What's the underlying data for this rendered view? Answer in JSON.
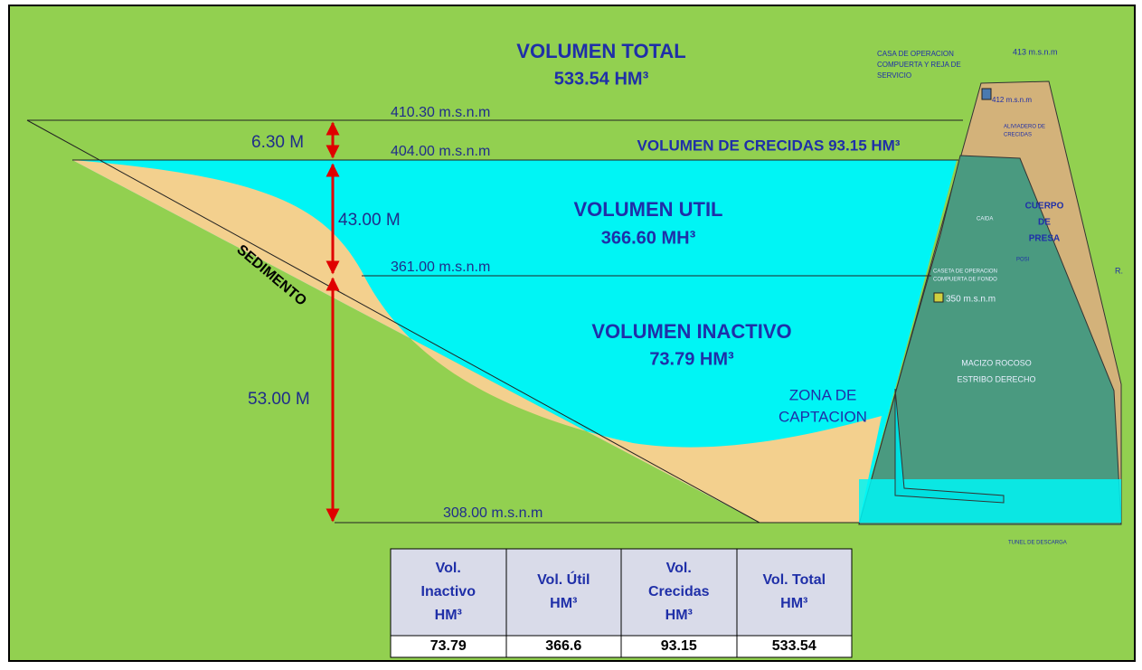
{
  "title": "VOLUMEN TOTAL",
  "total_volume": "533.54 HM³",
  "levels": [
    "410.30 m.s.n.m",
    "404.00 m.s.n.m",
    "361.00 m.s.n.m",
    "308.00 m.s.n.m"
  ],
  "heights": [
    "6.30 M",
    "43.00 M",
    "53.00 M"
  ],
  "flood_volume": "VOLUMEN DE CRECIDAS 93.15 HM³",
  "useful": {
    "label": "VOLUMEN UTIL",
    "value": "366.60 MH³"
  },
  "inactive": {
    "label": "VOLUMEN INACTIVO",
    "value": "73.79 HM³"
  },
  "intake": [
    "ZONA DE",
    "CAPTACION"
  ],
  "sediment": "SEDIMENTO",
  "dam_labels": {
    "service_house": [
      "CASA DE OPERACION",
      "COMPUERTA Y REJA DE",
      "SERVICIO"
    ],
    "crest": "413 m.s.n.m",
    "level412": "412 m.s.n.m",
    "spillway": [
      "ALIVIADERO DE",
      "CRECIDAS"
    ],
    "drop": "CAIDA",
    "body": [
      "CUERPO",
      "DE",
      "PRESA"
    ],
    "posi": "POSI",
    "bottom_house": [
      "CASETA DE OPERACION",
      "COMPUERTA DE FONDO"
    ],
    "level350": "350 m.s.n.m",
    "rock": [
      "MACIZO ROCOSO",
      "ESTRIBO DERECHO"
    ],
    "r": "R.",
    "tunnel": "TUNEL DE DESCARGA"
  },
  "table": {
    "header": [
      [
        "Vol.",
        "Inactivo",
        "HM³"
      ],
      [
        "Vol. Útil",
        "HM³"
      ],
      [
        "Vol.",
        "Crecidas",
        "HM³"
      ],
      [
        "Vol. Total",
        "HM³"
      ]
    ],
    "rows": [
      [
        73.79,
        366.6,
        93.15,
        533.54
      ]
    ]
  }
}
